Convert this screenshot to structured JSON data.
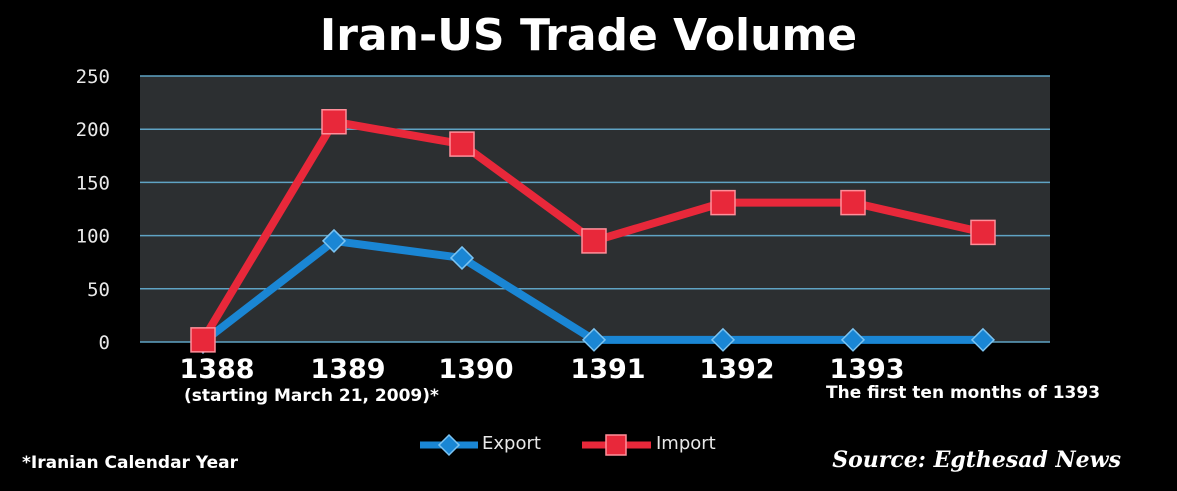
{
  "title": "Iran-US Trade Volume",
  "x_sublabels": {
    "first": "(starting March 21, 2009)*",
    "last": "The first ten months of 1393"
  },
  "footnote": "*Iranian Calendar Year",
  "source": "Source: Egthesad News",
  "colors": {
    "export": "#1a86d4",
    "import": "#e8283a",
    "plot_bg": "#2c2f31",
    "grid": "#5fa3c4"
  },
  "chart_data": {
    "type": "line",
    "title": "Iran-US Trade Volume",
    "x_tick_labels": [
      "1388",
      "1389",
      "1390",
      "1391",
      "1392",
      "1393",
      ""
    ],
    "ylim": [
      0,
      250
    ],
    "yticks": [
      0,
      50,
      100,
      150,
      200,
      250
    ],
    "grid": true,
    "legend_position": "bottom",
    "series": [
      {
        "name": "Export",
        "values": [
          0,
          95,
          79,
          2,
          2,
          2,
          2
        ]
      },
      {
        "name": "Import",
        "values": [
          2,
          207,
          186,
          95,
          131,
          131,
          103
        ]
      }
    ]
  }
}
